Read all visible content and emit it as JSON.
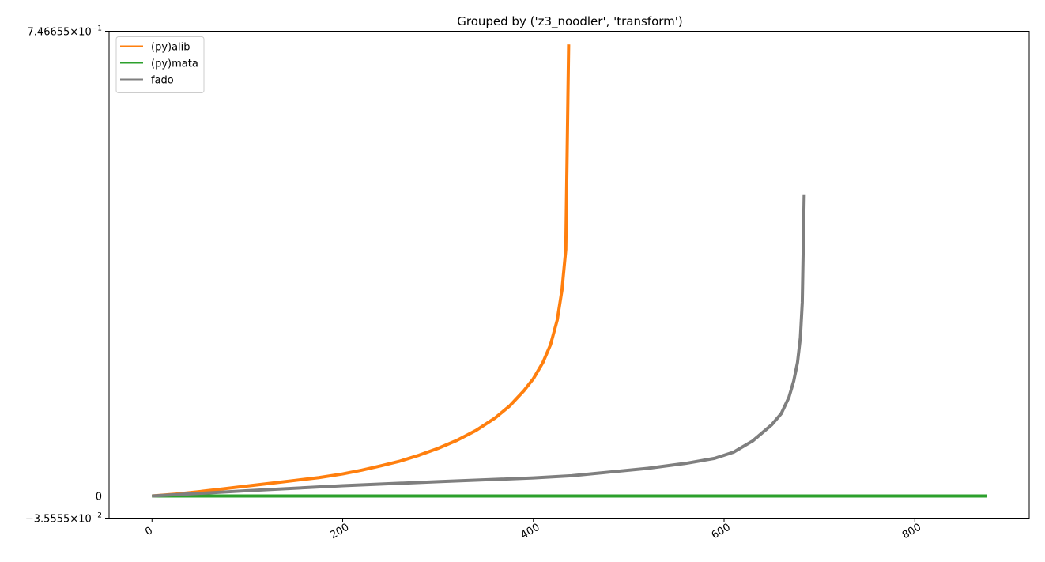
{
  "chart_data": {
    "type": "line",
    "title": "Grouped by ('z3_noodler', 'transform')",
    "xlabel": "",
    "ylabel": "",
    "xlim": [
      -45,
      920
    ],
    "ylim": [
      -0.035555,
      0.746655
    ],
    "grid": false,
    "legend_position": "top-left",
    "x_ticks": [
      {
        "value": 0,
        "label": "0"
      },
      {
        "value": 200,
        "label": "200"
      },
      {
        "value": 400,
        "label": "400"
      },
      {
        "value": 600,
        "label": "600"
      },
      {
        "value": 800,
        "label": "800"
      }
    ],
    "y_ticks": [
      {
        "value": 0.746655,
        "mantissa": "7.46655",
        "exponent": "−1"
      },
      {
        "value": 0,
        "mantissa": "0",
        "exponent": ""
      },
      {
        "value": -0.035555,
        "mantissa": "−3.5555",
        "exponent": "−2"
      }
    ],
    "series": [
      {
        "name": "(py)alib",
        "color": "#ff7f0e",
        "x": [
          0,
          25,
          50,
          75,
          100,
          125,
          150,
          175,
          200,
          220,
          240,
          260,
          280,
          300,
          320,
          340,
          360,
          375,
          390,
          400,
          410,
          418,
          425,
          430,
          434,
          437
        ],
        "y": [
          0,
          0.003,
          0.007,
          0.0115,
          0.016,
          0.0205,
          0.025,
          0.0295,
          0.0355,
          0.0415,
          0.0485,
          0.056,
          0.0655,
          0.0765,
          0.0895,
          0.1055,
          0.1255,
          0.1445,
          0.169,
          0.1885,
          0.2145,
          0.243,
          0.2825,
          0.331,
          0.396,
          0.7255
        ]
      },
      {
        "name": "(py)mata",
        "color": "#2ca02c",
        "x": [
          0,
          100,
          200,
          300,
          400,
          500,
          600,
          700,
          800,
          876
        ],
        "y": [
          0,
          0,
          0,
          0,
          0,
          0,
          0,
          0,
          0,
          0
        ]
      },
      {
        "name": "fado",
        "color": "#7f7f7f",
        "x": [
          0,
          100,
          200,
          300,
          400,
          440,
          480,
          520,
          560,
          590,
          610,
          630,
          650,
          660,
          668,
          673,
          677,
          680,
          682,
          684
        ],
        "y": [
          0,
          0.0085,
          0.0165,
          0.023,
          0.029,
          0.0325,
          0.0385,
          0.0445,
          0.0525,
          0.0605,
          0.0705,
          0.0885,
          0.1145,
          0.1325,
          0.1585,
          0.1845,
          0.2145,
          0.2545,
          0.311,
          0.4835
        ]
      }
    ]
  }
}
